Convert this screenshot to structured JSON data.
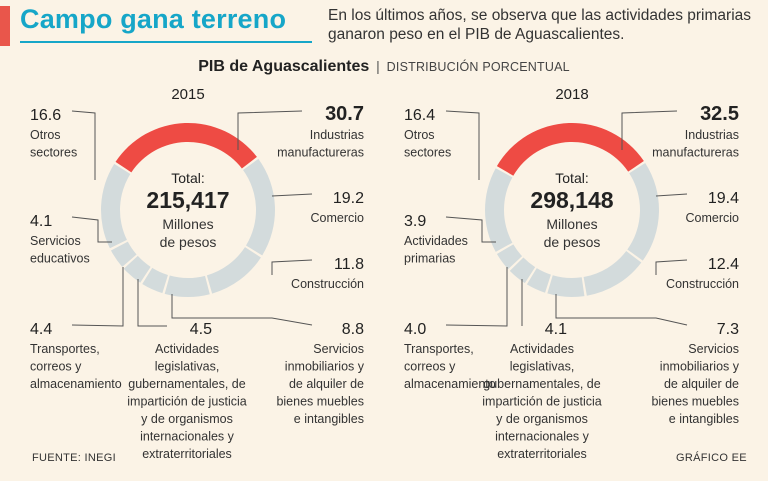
{
  "header": {
    "title": "Campo gana terreno",
    "subtitle": "En los últimos años, se observa que las actividades primarias ganaron peso en el PIB de Aguascalientes.",
    "chart_title": "PIB de Aguascalientes",
    "chart_subtitle": "DISTRIBUCIÓN PORCENTUAL"
  },
  "footer": {
    "source": "FUENTE: INEGI",
    "credit": "GRÁFICO EE"
  },
  "colors": {
    "highlight": "#ee4b44",
    "segment": "#d3dbdc",
    "accent": "#16a6c8",
    "background": "#fbf3e6"
  },
  "chart_data": [
    {
      "type": "pie",
      "year": "2015",
      "total_label": "Total:",
      "total_value": "215,417",
      "total_unit": "Millones de pesos",
      "series": [
        {
          "name": "Industrias manufactureras",
          "value": 30.7,
          "label": "30.7"
        },
        {
          "name": "Comercio",
          "value": 19.2,
          "label": "19.2"
        },
        {
          "name": "Construcción",
          "value": 11.8,
          "label": "11.8"
        },
        {
          "name": "Servicios inmobiliarios y de alquiler de bienes muebles e intangibles",
          "value": 8.8,
          "label": "8.8"
        },
        {
          "name": "Actividades legislativas, gubernamentales, de impartición de justicia y de organismos internacionales y extraterritoriales",
          "value": 4.5,
          "label": "4.5"
        },
        {
          "name": "Transportes, correos y almacenamiento",
          "value": 4.4,
          "label": "4.4"
        },
        {
          "name": "Servicios educativos",
          "value": 4.1,
          "label": "4.1"
        },
        {
          "name": "Otros sectores",
          "value": 16.6,
          "label": "16.6"
        }
      ]
    },
    {
      "type": "pie",
      "year": "2018",
      "total_label": "Total:",
      "total_value": "298,148",
      "total_unit": "Millones de pesos",
      "series": [
        {
          "name": "Industrias manufactureras",
          "value": 32.5,
          "label": "32.5"
        },
        {
          "name": "Comercio",
          "value": 19.4,
          "label": "19.4"
        },
        {
          "name": "Construcción",
          "value": 12.4,
          "label": "12.4"
        },
        {
          "name": "Servicios inmobiliarios y de alquiler de bienes muebles e intangibles",
          "value": 7.3,
          "label": "7.3"
        },
        {
          "name": "Actividades legislativas, gubernamentales, de impartición de justicia y de organismos internacionales y extraterritoriales",
          "value": 4.1,
          "label": "4.1"
        },
        {
          "name": "Transportes, correos y almacenamiento",
          "value": 4.0,
          "label": "4.0"
        },
        {
          "name": "Actividades primarias",
          "value": 3.9,
          "label": "3.9"
        },
        {
          "name": "Otros sectores",
          "value": 16.4,
          "label": "16.4"
        }
      ]
    }
  ]
}
